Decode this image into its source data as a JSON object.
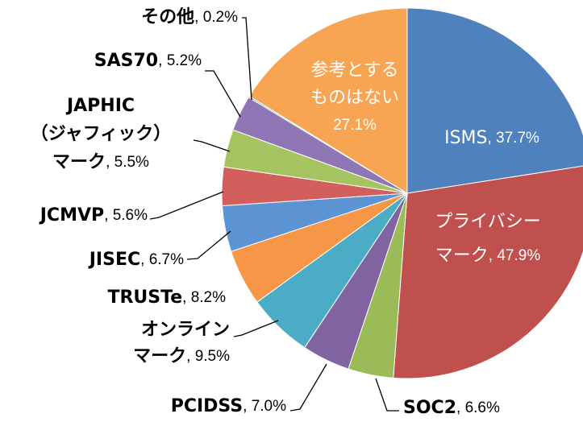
{
  "chart_data": {
    "type": "pie",
    "categories": [
      [
        "ISMS"
      ],
      [
        "プライバシー",
        "マーク"
      ],
      [
        "SOC2"
      ],
      [
        "PCIDSS"
      ],
      [
        "オンライン",
        "マーク"
      ],
      [
        "TRUSTe"
      ],
      [
        "JISEC"
      ],
      [
        "JCMVP"
      ],
      [
        "JAPHIC",
        "（ジャフィック）",
        "マーク"
      ],
      [
        "SAS70"
      ],
      [
        "その他"
      ],
      [
        "参考とする",
        "ものはない"
      ]
    ],
    "values": [
      37.7,
      47.9,
      6.6,
      7.0,
      9.5,
      8.2,
      6.7,
      5.6,
      5.5,
      5.2,
      0.2,
      27.1
    ],
    "value_labels": [
      "37.7%",
      "47.9%",
      "6.6%",
      "7.0%",
      "9.5%",
      "8.2%",
      "6.7%",
      "5.6%",
      "5.5%",
      "5.2%",
      "0.2%",
      "27.1%"
    ],
    "label_separator": ", ",
    "colors": [
      "#4f81bd",
      "#c0504d",
      "#9bbb59",
      "#8064a2",
      "#4bacc6",
      "#f79646",
      "#5b93d3",
      "#d25f5c",
      "#a5c461",
      "#8f76b5",
      "#4bacc6",
      "#f8a553"
    ]
  }
}
